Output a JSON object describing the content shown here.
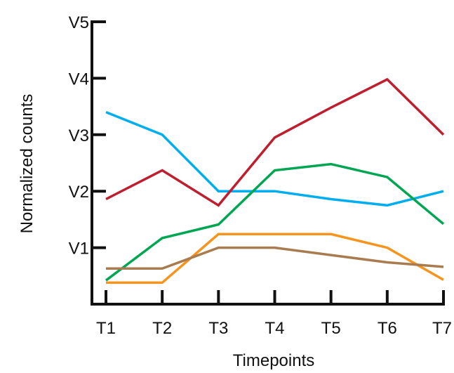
{
  "chart_data": {
    "type": "line",
    "title": "",
    "xlabel": "Timepoints",
    "ylabel": "Normalized counts",
    "categories": [
      "T1",
      "T2",
      "T3",
      "T4",
      "T5",
      "T6",
      "T7"
    ],
    "y_tick_labels": [
      "V1",
      "V2",
      "V3",
      "V4",
      "V5"
    ],
    "y_tick_values": [
      1,
      2,
      3,
      4,
      5
    ],
    "ylim": [
      0,
      5
    ],
    "grid": false,
    "legend": "none",
    "series": [
      {
        "color": "#00aeef",
        "values": [
          3.4,
          3.0,
          2.0,
          2.0,
          1.86,
          1.75,
          2.0
        ]
      },
      {
        "color": "#be1e2d",
        "values": [
          1.86,
          2.37,
          1.75,
          2.95,
          3.48,
          3.98,
          3.0
        ]
      },
      {
        "color": "#00a651",
        "values": [
          0.42,
          1.17,
          1.41,
          2.37,
          2.48,
          2.25,
          1.42
        ]
      },
      {
        "color": "#f7941d",
        "values": [
          0.38,
          0.38,
          1.24,
          1.24,
          1.24,
          1.0,
          0.43
        ]
      },
      {
        "color": "#a97c50",
        "values": [
          0.63,
          0.63,
          1.0,
          1.0,
          0.87,
          0.74,
          0.66
        ]
      }
    ]
  }
}
